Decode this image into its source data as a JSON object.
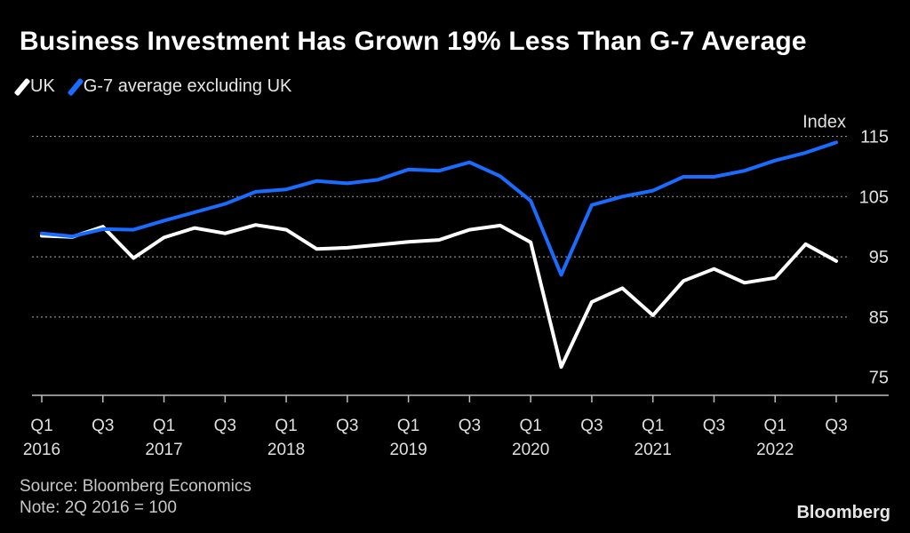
{
  "chart_data": {
    "type": "line",
    "title": "Business Investment Has Grown 19% Less Than G-7 Average",
    "unit_label": "Index",
    "xlabel": "",
    "ylabel": "",
    "ylim": [
      72,
      117
    ],
    "yticks": [
      75,
      85,
      95,
      105,
      115
    ],
    "categories": [
      "Q1 2016",
      "Q2 2016",
      "Q3 2016",
      "Q4 2016",
      "Q1 2017",
      "Q2 2017",
      "Q3 2017",
      "Q4 2017",
      "Q1 2018",
      "Q2 2018",
      "Q3 2018",
      "Q4 2018",
      "Q1 2019",
      "Q2 2019",
      "Q3 2019",
      "Q4 2019",
      "Q1 2020",
      "Q2 2020",
      "Q3 2020",
      "Q4 2020",
      "Q1 2021",
      "Q2 2021",
      "Q3 2021",
      "Q4 2021",
      "Q1 2022",
      "Q2 2022",
      "Q3 2022"
    ],
    "xticks": [
      {
        "index": 0,
        "q": "Q1",
        "year": "2016"
      },
      {
        "index": 2,
        "q": "Q3",
        "year": ""
      },
      {
        "index": 4,
        "q": "Q1",
        "year": "2017"
      },
      {
        "index": 6,
        "q": "Q3",
        "year": ""
      },
      {
        "index": 8,
        "q": "Q1",
        "year": "2018"
      },
      {
        "index": 10,
        "q": "Q3",
        "year": ""
      },
      {
        "index": 12,
        "q": "Q1",
        "year": "2019"
      },
      {
        "index": 14,
        "q": "Q3",
        "year": ""
      },
      {
        "index": 16,
        "q": "Q1",
        "year": "2020"
      },
      {
        "index": 18,
        "q": "Q3",
        "year": ""
      },
      {
        "index": 20,
        "q": "Q1",
        "year": "2021"
      },
      {
        "index": 22,
        "q": "Q3",
        "year": ""
      },
      {
        "index": 24,
        "q": "Q1",
        "year": "2022"
      },
      {
        "index": 26,
        "q": "Q3",
        "year": ""
      }
    ],
    "series": [
      {
        "name": "UK",
        "color": "#ffffff",
        "values": [
          98.5,
          98.3,
          100.0,
          94.8,
          98.2,
          99.8,
          98.9,
          100.3,
          99.5,
          96.3,
          96.5,
          97.0,
          97.5,
          97.8,
          99.5,
          100.2,
          97.4,
          76.7,
          87.5,
          89.8,
          85.3,
          91.0,
          93.0,
          90.7,
          91.5,
          97.1,
          94.3
        ]
      },
      {
        "name": "G-7 average excluding UK",
        "color": "#1a6cff",
        "values": [
          98.9,
          98.4,
          99.6,
          99.5,
          101.0,
          102.4,
          103.8,
          105.8,
          106.2,
          107.6,
          107.2,
          107.8,
          109.5,
          109.3,
          110.7,
          108.4,
          104.3,
          92.0,
          103.6,
          105.0,
          106.0,
          108.3,
          108.3,
          109.3,
          111.0,
          112.3,
          114.0
        ]
      }
    ],
    "legend": [
      "UK",
      "G-7 average excluding UK"
    ],
    "grid": true,
    "source": "Source: Bloomberg Economics",
    "note": "Note: 2Q 2016 = 100"
  },
  "brand": "Bloomberg"
}
